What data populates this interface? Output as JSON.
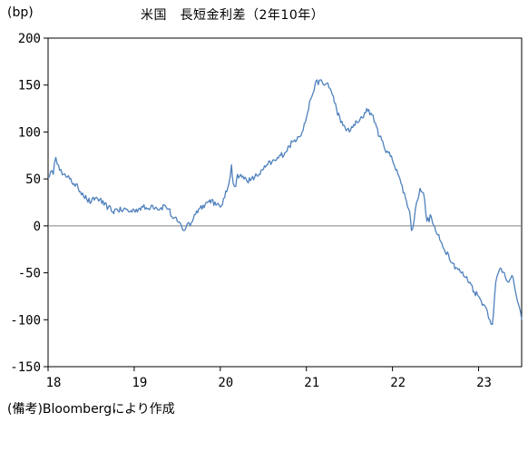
{
  "chart_data": {
    "type": "line",
    "title": "米国　長短金利差（2年10年）",
    "ylabel": "(bp)",
    "source": "(備考)Bloombergにより作成",
    "ylim": [
      -150,
      200
    ],
    "yticks": [
      200,
      150,
      100,
      50,
      0,
      -50,
      -100,
      -150
    ],
    "xlim": [
      18,
      23.5
    ],
    "xticks": [
      18,
      19,
      20,
      21,
      22,
      23
    ],
    "xtick_labels": [
      "18",
      "19",
      "20",
      "21",
      "22",
      "23"
    ],
    "grid": false,
    "zero_line": true,
    "line_color": "#4f81bd",
    "zero_line_color": "#808080",
    "series": [
      {
        "x": [
          18.0,
          18.03,
          18.06,
          18.09,
          18.12,
          18.15,
          18.18,
          18.21,
          18.25,
          18.3,
          18.35,
          18.4,
          18.45,
          18.5,
          18.55,
          18.6,
          18.65,
          18.7,
          18.75,
          18.8,
          18.85,
          18.9,
          18.95,
          19.0,
          19.05,
          19.1,
          19.15,
          19.2,
          19.25,
          19.3,
          19.35,
          19.4,
          19.45,
          19.5,
          19.55,
          19.58,
          19.62,
          19.65,
          19.7,
          19.75,
          19.8,
          19.85,
          19.9,
          19.95,
          20.0,
          20.05,
          20.1,
          20.13,
          20.15,
          20.18,
          20.2,
          20.25,
          20.3,
          20.35,
          20.4,
          20.45,
          20.5,
          20.55,
          20.6,
          20.65,
          20.7,
          20.75,
          20.8,
          20.85,
          20.9,
          20.95,
          21.0,
          21.05,
          21.1,
          21.15,
          21.2,
          21.25,
          21.3,
          21.35,
          21.4,
          21.45,
          21.5,
          21.55,
          21.6,
          21.65,
          21.7,
          21.75,
          21.8,
          21.85,
          21.9,
          21.95,
          22.0,
          22.05,
          22.1,
          22.15,
          22.2,
          22.22,
          22.25,
          22.28,
          22.32,
          22.36,
          22.4,
          22.45,
          22.48,
          22.5,
          22.55,
          22.6,
          22.65,
          22.7,
          22.75,
          22.8,
          22.85,
          22.9,
          22.95,
          23.0,
          23.03,
          23.07,
          23.1,
          23.13,
          23.16,
          23.2,
          23.25,
          23.3,
          23.35,
          23.4,
          23.45,
          23.5
        ],
        "y": [
          52,
          58,
          55,
          73,
          65,
          60,
          55,
          52,
          50,
          45,
          40,
          35,
          28,
          25,
          30,
          28,
          22,
          20,
          15,
          18,
          16,
          18,
          15,
          17,
          18,
          20,
          18,
          22,
          20,
          18,
          22,
          18,
          8,
          5,
          0,
          -5,
          3,
          0,
          12,
          18,
          22,
          25,
          28,
          22,
          20,
          30,
          45,
          65,
          45,
          42,
          55,
          52,
          50,
          48,
          52,
          55,
          60,
          65,
          68,
          70,
          75,
          78,
          85,
          90,
          95,
          100,
          115,
          135,
          150,
          155,
          150,
          152,
          140,
          125,
          110,
          105,
          100,
          108,
          110,
          115,
          125,
          120,
          110,
          95,
          85,
          78,
          70,
          60,
          45,
          30,
          15,
          -5,
          5,
          25,
          40,
          35,
          5,
          10,
          0,
          -5,
          -15,
          -25,
          -30,
          -40,
          -45,
          -50,
          -55,
          -60,
          -70,
          -75,
          -80,
          -85,
          -90,
          -100,
          -105,
          -60,
          -45,
          -50,
          -60,
          -55,
          -80,
          -100
        ]
      }
    ]
  }
}
